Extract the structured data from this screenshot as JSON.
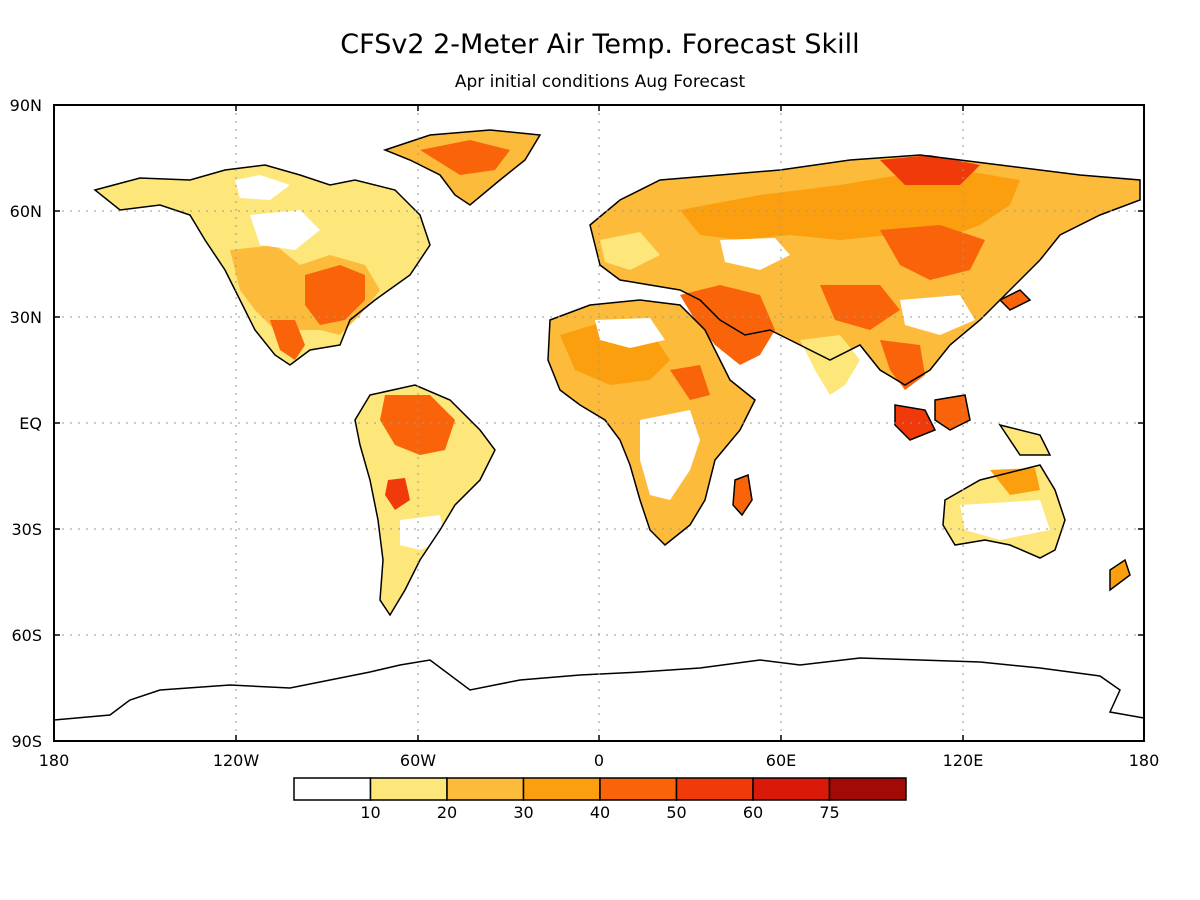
{
  "title": "CFSv2 2-Meter Air Temp. Forecast Skill",
  "subtitle": "Apr initial conditions   Aug Forecast",
  "axes": {
    "lat_labels": [
      "90N",
      "60N",
      "30N",
      "EQ",
      "30S",
      "60S",
      "90S"
    ],
    "lon_labels": [
      "180",
      "120W",
      "60W",
      "0",
      "60E",
      "120E",
      "180"
    ]
  },
  "legend": {
    "bins": [
      {
        "label": "10",
        "color": "#ffffff"
      },
      {
        "label": "20",
        "color": "#fde67a"
      },
      {
        "label": "30",
        "color": "#fdbb3b"
      },
      {
        "label": "40",
        "color": "#fb9f0f"
      },
      {
        "label": "50",
        "color": "#f9640a"
      },
      {
        "label": "60",
        "color": "#f13a0a"
      },
      {
        "label": "75",
        "color": "#d91a08"
      },
      {
        "label": "",
        "color": "#a10a05"
      }
    ]
  },
  "colors": {
    "coast": "#000000",
    "grid": "#9a9a9a"
  }
}
